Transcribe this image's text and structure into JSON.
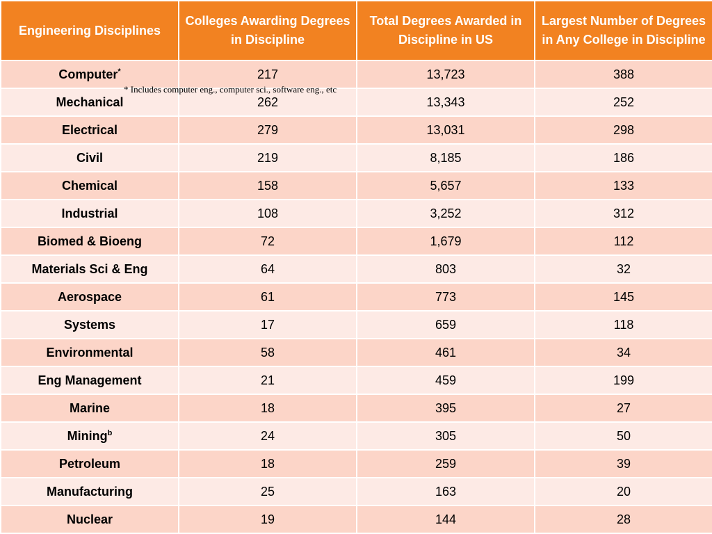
{
  "table": {
    "headers": [
      "Engineering Disciplines",
      "Colleges Awarding Degrees in Discipline",
      "Total Degrees Awarded in Discipline in US",
      "Largest Number of Degrees in Any College in Discipline"
    ],
    "rows": [
      {
        "discipline": "Computer",
        "sup": "*",
        "colleges": "217",
        "total": "13,723",
        "largest": "388"
      },
      {
        "discipline": "Mechanical",
        "sup": "",
        "colleges": "262",
        "total": "13,343",
        "largest": "252"
      },
      {
        "discipline": "Electrical",
        "sup": "",
        "colleges": "279",
        "total": "13,031",
        "largest": "298"
      },
      {
        "discipline": "Civil",
        "sup": "",
        "colleges": "219",
        "total": "8,185",
        "largest": "186"
      },
      {
        "discipline": "Chemical",
        "sup": "",
        "colleges": "158",
        "total": "5,657",
        "largest": "133"
      },
      {
        "discipline": "Industrial",
        "sup": "",
        "colleges": "108",
        "total": "3,252",
        "largest": "312"
      },
      {
        "discipline": "Biomed & Bioeng",
        "sup": "",
        "colleges": "72",
        "total": "1,679",
        "largest": "112"
      },
      {
        "discipline": "Materials Sci & Eng",
        "sup": "",
        "colleges": "64",
        "total": "803",
        "largest": "32"
      },
      {
        "discipline": "Aerospace",
        "sup": "",
        "colleges": "61",
        "total": "773",
        "largest": "145"
      },
      {
        "discipline": "Systems",
        "sup": "",
        "colleges": "17",
        "total": "659",
        "largest": "118"
      },
      {
        "discipline": "Environmental",
        "sup": "",
        "colleges": "58",
        "total": "461",
        "largest": "34"
      },
      {
        "discipline": "Eng Management",
        "sup": "",
        "colleges": "21",
        "total": "459",
        "largest": "199"
      },
      {
        "discipline": "Marine",
        "sup": "",
        "colleges": "18",
        "total": "395",
        "largest": "27"
      },
      {
        "discipline": "Mining",
        "sup": "b",
        "colleges": "24",
        "total": "305",
        "largest": "50"
      },
      {
        "discipline": "Petroleum",
        "sup": "",
        "colleges": "18",
        "total": "259",
        "largest": "39"
      },
      {
        "discipline": "Manufacturing",
        "sup": "",
        "colleges": "25",
        "total": "163",
        "largest": "20"
      },
      {
        "discipline": "Nuclear",
        "sup": "",
        "colleges": "19",
        "total": "144",
        "largest": "28"
      }
    ]
  },
  "footnote": "* Includes computer eng., computer sci., software eng., etc",
  "colors": {
    "header_bg": "#f28221",
    "row_dark": "#fcd5c8",
    "row_light": "#fdeae5"
  }
}
